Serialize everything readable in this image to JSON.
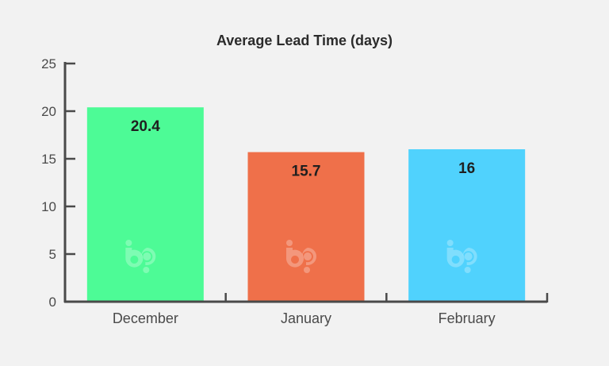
{
  "chart_data": {
    "type": "bar",
    "title": "Average Lead Time (days)",
    "xlabel": "",
    "ylabel": "",
    "categories": [
      "December",
      "January",
      "February"
    ],
    "values": [
      20.4,
      15.7,
      16
    ],
    "value_labels": [
      "20.4",
      "15.7",
      "16"
    ],
    "bar_colors": [
      "#4dfb96",
      "#ef704a",
      "#50d2fd"
    ],
    "ylim": [
      0,
      25
    ],
    "yticks": [
      0,
      5,
      10,
      15,
      20,
      25
    ],
    "grid": false,
    "legend": "none",
    "watermark": "bp-logo"
  }
}
